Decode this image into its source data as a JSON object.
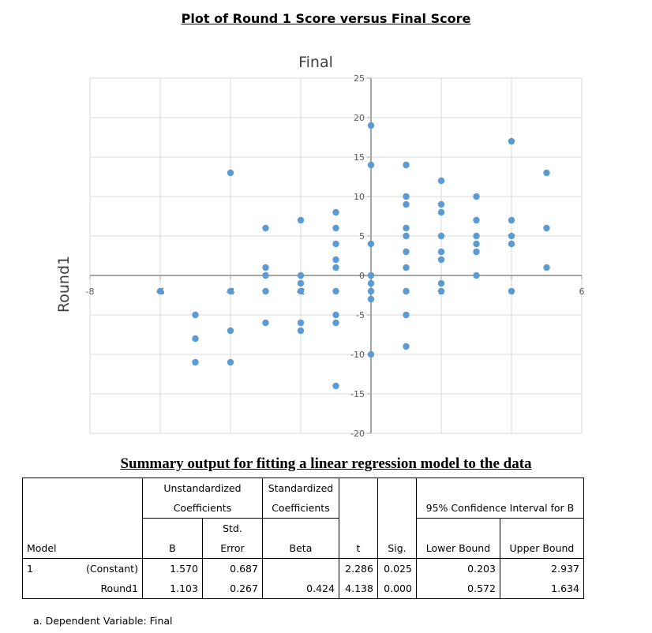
{
  "page_title": "Plot of Round 1 Score versus Final Score",
  "chart_data": {
    "type": "scatter",
    "title": "Final",
    "xlabel": "",
    "ylabel": "Round1",
    "xlim": [
      -8,
      6
    ],
    "ylim": [
      -20,
      25
    ],
    "xticks": [
      -8,
      -6,
      -4,
      -2,
      0,
      2,
      4,
      6
    ],
    "yticks": [
      -20,
      -15,
      -10,
      -5,
      0,
      5,
      10,
      15,
      20,
      25
    ],
    "grid": true,
    "color": "#5b9bd5",
    "points": [
      [
        -6,
        -2
      ],
      [
        -5,
        -5
      ],
      [
        -5,
        -8
      ],
      [
        -5,
        -11
      ],
      [
        -4,
        13
      ],
      [
        -4,
        -2
      ],
      [
        -4,
        -7
      ],
      [
        -4,
        -11
      ],
      [
        -3,
        6
      ],
      [
        -3,
        1
      ],
      [
        -3,
        0
      ],
      [
        -3,
        -2
      ],
      [
        -3,
        -6
      ],
      [
        -2,
        7
      ],
      [
        -2,
        0
      ],
      [
        -2,
        -1
      ],
      [
        -2,
        -2
      ],
      [
        -2,
        -6
      ],
      [
        -2,
        -7
      ],
      [
        -1,
        8
      ],
      [
        -1,
        6
      ],
      [
        -1,
        4
      ],
      [
        -1,
        2
      ],
      [
        -1,
        1
      ],
      [
        -1,
        -2
      ],
      [
        -1,
        -5
      ],
      [
        -1,
        -6
      ],
      [
        -1,
        -14
      ],
      [
        0,
        19
      ],
      [
        0,
        14
      ],
      [
        0,
        4
      ],
      [
        0,
        0
      ],
      [
        0,
        -1
      ],
      [
        0,
        -2
      ],
      [
        0,
        -3
      ],
      [
        0,
        -10
      ],
      [
        1,
        14
      ],
      [
        1,
        10
      ],
      [
        1,
        9
      ],
      [
        1,
        6
      ],
      [
        1,
        5
      ],
      [
        1,
        3
      ],
      [
        1,
        1
      ],
      [
        1,
        -2
      ],
      [
        1,
        -5
      ],
      [
        1,
        -9
      ],
      [
        2,
        12
      ],
      [
        2,
        9
      ],
      [
        2,
        8
      ],
      [
        2,
        5
      ],
      [
        2,
        3
      ],
      [
        2,
        2
      ],
      [
        2,
        -1
      ],
      [
        2,
        -2
      ],
      [
        3,
        10
      ],
      [
        3,
        7
      ],
      [
        3,
        5
      ],
      [
        3,
        4
      ],
      [
        3,
        3
      ],
      [
        3,
        0
      ],
      [
        4,
        17
      ],
      [
        4,
        7
      ],
      [
        4,
        5
      ],
      [
        4,
        4
      ],
      [
        4,
        -2
      ],
      [
        5,
        13
      ],
      [
        5,
        6
      ],
      [
        5,
        1
      ]
    ]
  },
  "regression": {
    "section_title": "Summary output for fitting a linear regression model to the data",
    "header": {
      "unstandardized": "Unstandardized",
      "coefficients": "Coefficients",
      "standardized": "Standardized",
      "std_coefficients": "Coefficients",
      "ci": "95% Confidence Interval for B",
      "std": "Std.",
      "model": "Model",
      "b": "B",
      "error": "Error",
      "beta": "Beta",
      "t": "t",
      "sig": "Sig.",
      "lower": "Lower Bound",
      "upper": "Upper Bound"
    },
    "model_number": "1",
    "rows": [
      {
        "name": "(Constant)",
        "b": "1.570",
        "se": "0.687",
        "beta": "",
        "t": "2.286",
        "sig": "0.025",
        "lower": "0.203",
        "upper": "2.937"
      },
      {
        "name": "Round1",
        "b": "1.103",
        "se": "0.267",
        "beta": "0.424",
        "t": "4.138",
        "sig": "0.000",
        "lower": "0.572",
        "upper": "1.634"
      }
    ],
    "footnote": "a. Dependent Variable: Final"
  }
}
